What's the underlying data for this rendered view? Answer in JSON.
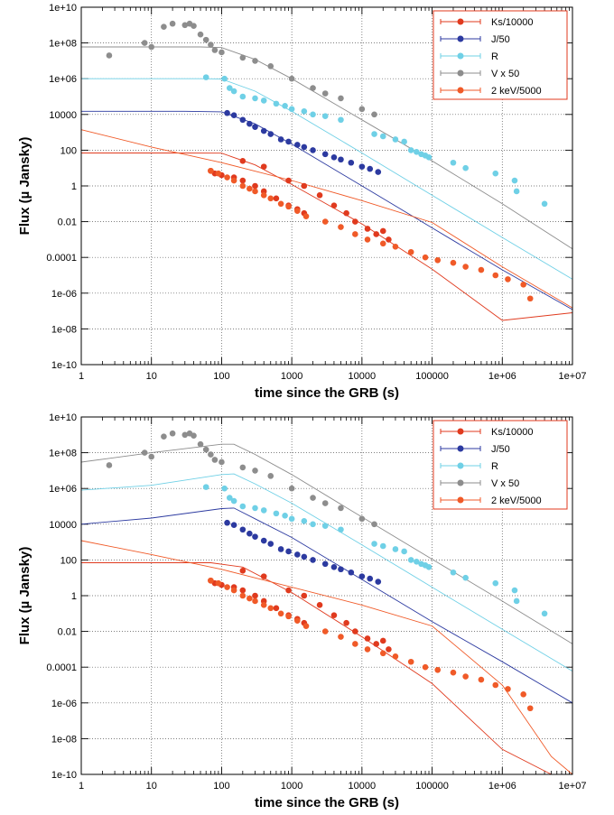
{
  "chart_data": [
    {
      "type": "scatter",
      "xlabel": "time since the GRB (s)",
      "ylabel": "Flux (µ Jansky)",
      "xscale": "log",
      "yscale": "log",
      "xlim": [
        1,
        10000000
      ],
      "ylim": [
        1e-10,
        10000000000.0
      ],
      "grid": true,
      "legend_position": "top-right",
      "x_ticks": [
        "1",
        "10",
        "100",
        "1000",
        "10000",
        "100000",
        "1e+06",
        "1e+07"
      ],
      "y_ticks": [
        "1e-10",
        "1e-08",
        "1e-06",
        "0.0001",
        "0.01",
        "1",
        "100",
        "10000",
        "1e+06",
        "1e+08",
        "1e+10"
      ],
      "legend": [
        "Ks/10000",
        "J/50",
        "R",
        "V x 50",
        "2 keV/5000"
      ],
      "series": [
        {
          "name": "Ks/10000",
          "color": "#e03a1e",
          "points": [
            [
              70,
              7
            ],
            [
              80,
              5
            ],
            [
              100,
              4
            ],
            [
              150,
              3
            ],
            [
              200,
              2
            ],
            [
              300,
              1
            ],
            [
              400,
              0.5
            ],
            [
              600,
              0.2
            ],
            [
              900,
              0.08
            ],
            [
              1200,
              0.05
            ],
            [
              1500,
              0.03
            ],
            [
              900,
              2
            ],
            [
              1500,
              1
            ],
            [
              2500,
              0.3
            ],
            [
              4000,
              0.08
            ],
            [
              6000,
              0.03
            ],
            [
              8000,
              0.01
            ],
            [
              12000,
              0.004
            ],
            [
              16000,
              0.002
            ],
            [
              20000,
              0.003
            ],
            [
              24000,
              0.001
            ],
            [
              400,
              12
            ],
            [
              200,
              25
            ]
          ],
          "model_a": [
            [
              1,
              70
            ],
            [
              20,
              70
            ],
            [
              100,
              68
            ],
            [
              300,
              15
            ],
            [
              1000,
              1.2
            ],
            [
              10000,
              0.0075
            ],
            [
              100000,
              2.2e-05
            ],
            [
              1000000,
              3e-08
            ],
            [
              10000000,
              8e-08
            ]
          ],
          "model_b": [
            [
              1,
              70
            ],
            [
              20,
              70
            ],
            [
              70,
              70
            ],
            [
              200,
              40
            ],
            [
              1000,
              1.5
            ],
            [
              10000,
              0.005
            ],
            [
              100000,
              1.2e-05
            ],
            [
              1000000,
              2.5e-09
            ],
            [
              5000000,
              1e-10
            ]
          ]
        },
        {
          "name": "J/50",
          "color": "#2c3aa0",
          "points": [
            [
              120,
              12000
            ],
            [
              150,
              9000
            ],
            [
              200,
              5000
            ],
            [
              250,
              3000
            ],
            [
              300,
              2000
            ],
            [
              400,
              1200
            ],
            [
              500,
              800
            ],
            [
              700,
              400
            ],
            [
              900,
              300
            ],
            [
              1200,
              200
            ],
            [
              1500,
              150
            ],
            [
              2000,
              100
            ],
            [
              3000,
              60
            ],
            [
              4000,
              40
            ],
            [
              5000,
              30
            ],
            [
              7000,
              20
            ],
            [
              10000,
              12
            ],
            [
              13000,
              9
            ],
            [
              17000,
              6
            ]
          ],
          "model_a": [
            [
              1,
              15000
            ],
            [
              30,
              15000
            ],
            [
              100,
              14000
            ],
            [
              300,
              3000
            ],
            [
              1000,
              220
            ],
            [
              10000,
              1
            ],
            [
              100000,
              0.0045
            ],
            [
              1000000,
              2e-05
            ],
            [
              10000000,
              1.2e-07
            ]
          ],
          "model_b": [
            [
              1,
              10000
            ],
            [
              10,
              22000
            ],
            [
              100,
              75000
            ],
            [
              150,
              80000
            ],
            [
              300,
              20000
            ],
            [
              1000,
              1800
            ],
            [
              10000,
              8
            ],
            [
              100000,
              0.035
            ],
            [
              1000000,
              0.0002
            ],
            [
              10000000,
              1e-06
            ]
          ]
        },
        {
          "name": "R",
          "color": "#6fd0e6",
          "points": [
            [
              60,
              1200000
            ],
            [
              110,
              1000000
            ],
            [
              130,
              300000
            ],
            [
              150,
              200000
            ],
            [
              200,
              100000
            ],
            [
              300,
              80000
            ],
            [
              400,
              60000
            ],
            [
              600,
              40000
            ],
            [
              800,
              30000
            ],
            [
              1000,
              20000
            ],
            [
              1500,
              15000
            ],
            [
              2000,
              10000
            ],
            [
              3000,
              8000
            ],
            [
              5000,
              5000
            ],
            [
              15000,
              800
            ],
            [
              20000,
              600
            ],
            [
              30000,
              400
            ],
            [
              40000,
              300
            ],
            [
              50000,
              100
            ],
            [
              60000,
              80
            ],
            [
              70000,
              60
            ],
            [
              80000,
              50
            ],
            [
              90000,
              40
            ],
            [
              200000,
              20
            ],
            [
              300000,
              10
            ],
            [
              800000,
              5
            ],
            [
              1500000,
              2
            ],
            [
              1600000,
              0.5
            ],
            [
              4000000,
              0.1
            ]
          ],
          "model_a": [
            [
              1,
              1000000
            ],
            [
              50,
              1000000
            ],
            [
              100,
              950000
            ],
            [
              300,
              200000
            ],
            [
              1000,
              15000
            ],
            [
              10000,
              70
            ],
            [
              100000,
              0.3
            ],
            [
              1000000,
              0.0013
            ],
            [
              10000000,
              6e-06
            ]
          ],
          "model_b": [
            [
              1,
              800000
            ],
            [
              10,
              1500000
            ],
            [
              100,
              6000000
            ],
            [
              150,
              6500000
            ],
            [
              300,
              1800000
            ],
            [
              1000,
              150000
            ],
            [
              10000,
              700
            ],
            [
              100000,
              3
            ],
            [
              1000000,
              0.013
            ],
            [
              10000000,
              6e-05
            ]
          ]
        },
        {
          "name": "V x 50",
          "color": "#8d8d8d",
          "points": [
            [
              2.5,
              20000000
            ],
            [
              8,
              100000000
            ],
            [
              10,
              60000000
            ],
            [
              15,
              800000000
            ],
            [
              20,
              1200000000
            ],
            [
              30,
              1000000000
            ],
            [
              35,
              1200000000
            ],
            [
              40,
              900000000
            ],
            [
              50,
              300000000
            ],
            [
              60,
              150000000
            ],
            [
              70,
              80000000
            ],
            [
              80,
              40000000
            ],
            [
              100,
              30000000
            ],
            [
              200,
              15000000
            ],
            [
              300,
              10000000
            ],
            [
              500,
              5000000
            ],
            [
              1000,
              1000000
            ],
            [
              2000,
              300000
            ],
            [
              3000,
              150000
            ],
            [
              5000,
              80000
            ],
            [
              10000,
              20000
            ],
            [
              15000,
              10000
            ]
          ],
          "model_a": [
            [
              1,
              60000000
            ],
            [
              50,
              60000000
            ],
            [
              100,
              55000000
            ],
            [
              300,
              12000000
            ],
            [
              1000,
              1000000
            ],
            [
              10000,
              5000
            ],
            [
              100000,
              25
            ],
            [
              1000000,
              0.1
            ],
            [
              10000000,
              0.0003
            ]
          ],
          "model_b": [
            [
              1,
              30000000
            ],
            [
              10,
              100000000
            ],
            [
              100,
              300000000
            ],
            [
              150,
              300000000
            ],
            [
              300,
              80000000
            ],
            [
              1000,
              6000000
            ],
            [
              10000,
              25000
            ],
            [
              100000,
              110
            ],
            [
              1000000,
              0.5
            ],
            [
              10000000,
              0.002
            ]
          ]
        },
        {
          "name": "2 keV/5000",
          "color": "#f05a28",
          "points": [
            [
              70,
              7
            ],
            [
              90,
              5
            ],
            [
              120,
              3
            ],
            [
              150,
              2
            ],
            [
              200,
              1
            ],
            [
              250,
              0.7
            ],
            [
              300,
              0.5
            ],
            [
              400,
              0.3
            ],
            [
              500,
              0.2
            ],
            [
              700,
              0.1
            ],
            [
              900,
              0.07
            ],
            [
              1200,
              0.04
            ],
            [
              1600,
              0.02
            ],
            [
              3000,
              0.01
            ],
            [
              5000,
              0.005
            ],
            [
              8000,
              0.002
            ],
            [
              12000,
              0.001
            ],
            [
              20000,
              0.0006
            ],
            [
              30000,
              0.0004
            ],
            [
              50000,
              0.0002
            ],
            [
              80000,
              0.0001
            ],
            [
              120000,
              7e-05
            ],
            [
              200000,
              5e-05
            ],
            [
              300000,
              3e-05
            ],
            [
              500000,
              2e-05
            ],
            [
              800000,
              1e-05
            ],
            [
              1200000,
              6e-06
            ],
            [
              2000000,
              3e-06
            ],
            [
              2500000,
              5e-07
            ]
          ],
          "model_a": [
            [
              1,
              1400
            ],
            [
              10,
              150
            ],
            [
              100,
              20
            ],
            [
              1000,
              2
            ],
            [
              10000,
              0.15
            ],
            [
              100000,
              0.009
            ],
            [
              1000000,
              3e-05
            ],
            [
              10000000,
              1.5e-07
            ]
          ],
          "model_b": [
            [
              1,
              1200
            ],
            [
              10,
              200
            ],
            [
              100,
              30
            ],
            [
              1000,
              3
            ],
            [
              10000,
              0.3
            ],
            [
              100000,
              0.02
            ],
            [
              1000000,
              1e-05
            ],
            [
              5000000,
              1e-09
            ],
            [
              10000000,
              1e-10
            ]
          ]
        }
      ]
    },
    {
      "type": "scatter",
      "xlabel": "time since the GRB (s)",
      "ylabel": "Flux (µ Jansky)",
      "xscale": "log",
      "yscale": "log",
      "xlim": [
        1,
        10000000
      ],
      "ylim": [
        1e-10,
        10000000000.0
      ],
      "grid": true,
      "legend_position": "top-right",
      "x_ticks": [
        "1",
        "10",
        "100",
        "1000",
        "10000",
        "100000",
        "1e+06",
        "1e+07"
      ],
      "y_ticks": [
        "1e-10",
        "1e-08",
        "1e-06",
        "0.0001",
        "0.01",
        "1",
        "100",
        "10000",
        "1e+06",
        "1e+08",
        "1e+10"
      ],
      "legend": [
        "Ks/10000",
        "J/50",
        "R",
        "V x 50",
        "2 keV/5000"
      ]
    }
  ]
}
